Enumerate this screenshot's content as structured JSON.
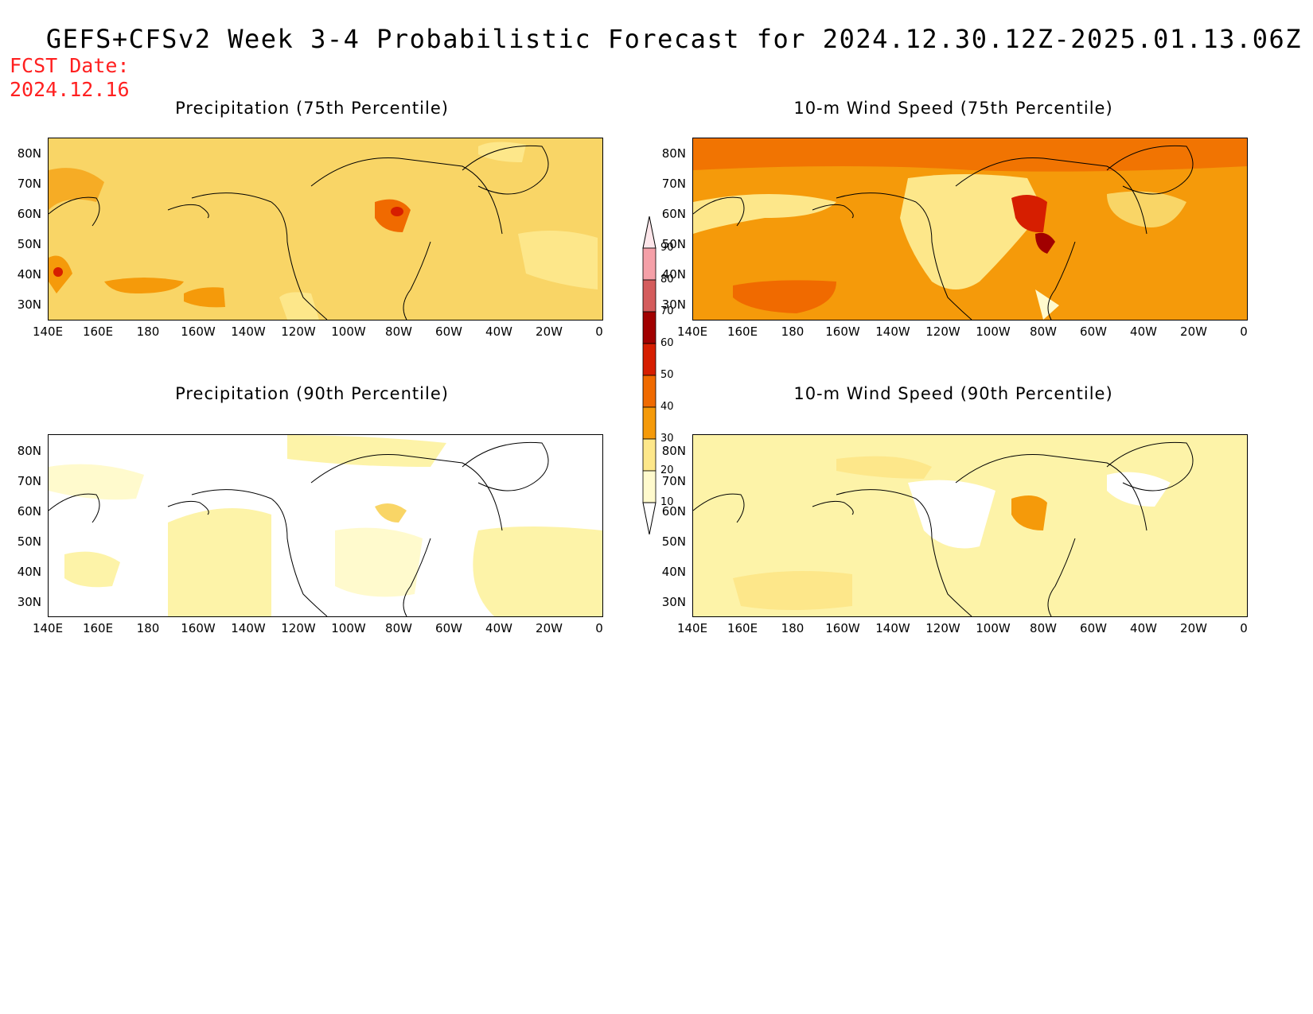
{
  "header": {
    "title": "GEFS+CFSv2 Week 3-4 Probabilistic Forecast for 2024.12.30.12Z-2025.01.13.06Z",
    "fcst_label": "FCST Date:",
    "fcst_date": "2024.12.16"
  },
  "panels": [
    {
      "id": "p75",
      "title": "Precipitation (75th Percentile)",
      "base_color": "#f9d566"
    },
    {
      "id": "w75",
      "title": "10-m Wind Speed (75th Percentile)",
      "base_color": "#f59a0a"
    },
    {
      "id": "p90",
      "title": "Precipitation (90th Percentile)",
      "base_color": "#ffffff"
    },
    {
      "id": "w90",
      "title": "10-m Wind Speed (90th Percentile)",
      "base_color": "#fdf3a8"
    }
  ],
  "axes": {
    "lat_labels": [
      "80N",
      "70N",
      "60N",
      "50N",
      "40N",
      "30N"
    ],
    "lon_labels": [
      "140E",
      "160E",
      "180",
      "160W",
      "140W",
      "120W",
      "100W",
      "80W",
      "60W",
      "40W",
      "20W",
      "0"
    ]
  },
  "colorbar": {
    "levels": [
      "10",
      "20",
      "30",
      "40",
      "50",
      "60",
      "70",
      "80",
      "90"
    ],
    "colors": [
      "#fffacd",
      "#fde78a",
      "#f9d566",
      "#f59a0a",
      "#f06a00",
      "#d61e00",
      "#a10000",
      "#d45c5c",
      "#f5a0a8",
      "#fde6ea"
    ]
  }
}
